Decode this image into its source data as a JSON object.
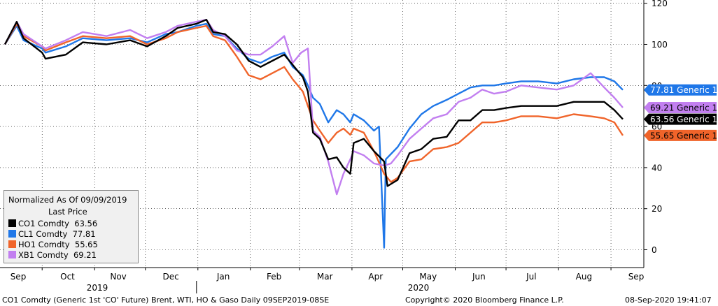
{
  "chart_data": {
    "type": "line",
    "normalization_label": "Normalized As Of 09/09/2019",
    "legend_subtitle": "Last Price",
    "x_ticks": [
      "Sep",
      "Oct",
      "Nov",
      "Dec",
      "Jan",
      "Feb",
      "Mar",
      "Apr",
      "May",
      "Jun",
      "Jul",
      "Aug",
      "Sep"
    ],
    "year_labels": [
      "2019",
      "2020"
    ],
    "y_ticks": [
      "0",
      "20",
      "40",
      "60",
      "80",
      "100",
      "120"
    ],
    "ylim": [
      -10,
      120
    ],
    "grid": true,
    "legend_position": "bottom-left",
    "series": [
      {
        "name": "CO1 Comdty",
        "last": "63.56",
        "color": "#000000",
        "tag": "63.56 Generic 1",
        "tag_text_color": "#ffffff",
        "points": [
          [
            "2019-09-09",
            100
          ],
          [
            "2019-09-16",
            111
          ],
          [
            "2019-09-20",
            103
          ],
          [
            "2019-10-01",
            96
          ],
          [
            "2019-10-03",
            93
          ],
          [
            "2019-10-15",
            95
          ],
          [
            "2019-10-25",
            101
          ],
          [
            "2019-11-08",
            100
          ],
          [
            "2019-11-22",
            102
          ],
          [
            "2019-12-02",
            99
          ],
          [
            "2019-12-13",
            104
          ],
          [
            "2019-12-20",
            108
          ],
          [
            "2019-12-31",
            110
          ],
          [
            "2020-01-06",
            112
          ],
          [
            "2020-01-10",
            106
          ],
          [
            "2020-01-17",
            105
          ],
          [
            "2020-01-24",
            100
          ],
          [
            "2020-01-31",
            92
          ],
          [
            "2020-02-07",
            89
          ],
          [
            "2020-02-14",
            92
          ],
          [
            "2020-02-21",
            95
          ],
          [
            "2020-02-26",
            90
          ],
          [
            "2020-03-03",
            84
          ],
          [
            "2020-03-06",
            77
          ],
          [
            "2020-03-09",
            57
          ],
          [
            "2020-03-13",
            54
          ],
          [
            "2020-03-18,",
            44
          ],
          [
            "2020-03-23",
            45
          ],
          [
            "2020-03-27",
            40
          ],
          [
            "2020-03-31",
            37
          ],
          [
            "2020-04-02",
            52
          ],
          [
            "2020-04-08",
            54
          ],
          [
            "2020-04-14",
            48
          ],
          [
            "2020-04-20",
            43
          ],
          [
            "2020-04-22",
            31
          ],
          [
            "2020-04-28",
            34
          ],
          [
            "2020-05-05",
            47
          ],
          [
            "2020-05-12",
            49
          ],
          [
            "2020-05-19",
            54
          ],
          [
            "2020-05-27",
            55
          ],
          [
            "2020-06-03",
            63
          ],
          [
            "2020-06-10",
            63
          ],
          [
            "2020-06-17",
            68
          ],
          [
            "2020-06-24",
            68
          ],
          [
            "2020-07-01",
            69
          ],
          [
            "2020-07-10",
            70
          ],
          [
            "2020-07-20",
            70
          ],
          [
            "2020-07-31",
            70
          ],
          [
            "2020-08-10",
            72
          ],
          [
            "2020-08-20",
            72
          ],
          [
            "2020-08-28",
            72
          ],
          [
            "2020-09-03",
            68
          ],
          [
            "2020-09-08",
            63.56
          ]
        ]
      },
      {
        "name": "CL1 Comdty",
        "last": "77.81",
        "color": "#1f77e8",
        "tag": "77.81 Generic 1",
        "tag_text_color": "#ffffff",
        "points": [
          [
            "2019-09-09",
            100
          ],
          [
            "2019-09-16",
            109
          ],
          [
            "2019-09-20",
            102
          ],
          [
            "2019-10-01",
            98
          ],
          [
            "2019-10-03",
            96
          ],
          [
            "2019-10-15",
            99
          ],
          [
            "2019-10-25",
            103
          ],
          [
            "2019-11-08",
            102
          ],
          [
            "2019-11-22",
            103
          ],
          [
            "2019-12-02",
            101
          ],
          [
            "2019-12-13",
            105
          ],
          [
            "2019-12-20",
            106
          ],
          [
            "2019-12-31",
            109
          ],
          [
            "2020-01-06",
            110
          ],
          [
            "2020-01-10",
            105
          ],
          [
            "2020-01-17",
            104
          ],
          [
            "2020-01-24",
            98
          ],
          [
            "2020-01-31",
            93
          ],
          [
            "2020-02-07",
            91
          ],
          [
            "2020-02-14",
            94
          ],
          [
            "2020-02-21",
            96
          ],
          [
            "2020-02-26",
            89
          ],
          [
            "2020-03-03",
            85
          ],
          [
            "2020-03-06",
            80
          ],
          [
            "2020-03-09",
            74
          ],
          [
            "2020-03-13",
            71
          ],
          [
            "2020-03-18",
            62
          ],
          [
            "2020-03-23",
            68
          ],
          [
            "2020-03-27",
            66
          ],
          [
            "2020-03-31",
            62
          ],
          [
            "2020-04-02",
            66
          ],
          [
            "2020-04-08",
            63
          ],
          [
            "2020-04-14",
            58
          ],
          [
            "2020-04-17",
            60
          ],
          [
            "2020-04-20",
            1
          ],
          [
            "2020-04-21",
            44
          ],
          [
            "2020-04-28",
            50
          ],
          [
            "2020-05-05",
            59
          ],
          [
            "2020-05-12",
            66
          ],
          [
            "2020-05-19",
            70
          ],
          [
            "2020-05-27",
            73
          ],
          [
            "2020-06-03",
            76
          ],
          [
            "2020-06-10",
            79
          ],
          [
            "2020-06-17",
            80
          ],
          [
            "2020-06-24",
            80
          ],
          [
            "2020-07-01",
            81
          ],
          [
            "2020-07-10",
            82
          ],
          [
            "2020-07-20",
            82
          ],
          [
            "2020-07-31",
            81
          ],
          [
            "2020-08-10",
            83
          ],
          [
            "2020-08-20",
            84
          ],
          [
            "2020-08-28",
            84
          ],
          [
            "2020-09-03",
            82
          ],
          [
            "2020-09-08",
            77.81
          ]
        ]
      },
      {
        "name": "HO1 Comdty",
        "last": "55.65",
        "color": "#f0642a",
        "tag": "55.65 Generic 1",
        "tag_text_color": "#000000",
        "points": [
          [
            "2019-09-09",
            100
          ],
          [
            "2019-09-16",
            110
          ],
          [
            "2019-09-20",
            104
          ],
          [
            "2019-10-01",
            99
          ],
          [
            "2019-10-03",
            97
          ],
          [
            "2019-10-15",
            101
          ],
          [
            "2019-10-25",
            104
          ],
          [
            "2019-11-08",
            103
          ],
          [
            "2019-11-22",
            104
          ],
          [
            "2019-12-02",
            100
          ],
          [
            "2019-12-13",
            103
          ],
          [
            "2019-12-20",
            106
          ],
          [
            "2019-12-31",
            108
          ],
          [
            "2020-01-06",
            109
          ],
          [
            "2020-01-10",
            104
          ],
          [
            "2020-01-17",
            102
          ],
          [
            "2020-01-24",
            94
          ],
          [
            "2020-01-31",
            85
          ],
          [
            "2020-02-07",
            83
          ],
          [
            "2020-02-14",
            86
          ],
          [
            "2020-02-21",
            89
          ],
          [
            "2020-02-26",
            83
          ],
          [
            "2020-03-03",
            77
          ],
          [
            "2020-03-06",
            70
          ],
          [
            "2020-03-09",
            63
          ],
          [
            "2020-03-13",
            58
          ],
          [
            "2020-03-18",
            52
          ],
          [
            "2020-03-23",
            57
          ],
          [
            "2020-03-27",
            59
          ],
          [
            "2020-03-31",
            56
          ],
          [
            "2020-04-02",
            59
          ],
          [
            "2020-04-08",
            57
          ],
          [
            "2020-04-14",
            48
          ],
          [
            "2020-04-20",
            37
          ],
          [
            "2020-04-24",
            33
          ],
          [
            "2020-04-28",
            35
          ],
          [
            "2020-05-05",
            43
          ],
          [
            "2020-05-12",
            44
          ],
          [
            "2020-05-19",
            49
          ],
          [
            "2020-05-27",
            50
          ],
          [
            "2020-06-03",
            52
          ],
          [
            "2020-06-10",
            57
          ],
          [
            "2020-06-17",
            62
          ],
          [
            "2020-06-24",
            62
          ],
          [
            "2020-07-01",
            63
          ],
          [
            "2020-07-10",
            65
          ],
          [
            "2020-07-20",
            65
          ],
          [
            "2020-07-31",
            64
          ],
          [
            "2020-08-10",
            66
          ],
          [
            "2020-08-20",
            65
          ],
          [
            "2020-08-28",
            64
          ],
          [
            "2020-09-03",
            62
          ],
          [
            "2020-09-08",
            55.65
          ]
        ]
      },
      {
        "name": "XB1 Comdty",
        "last": "69.21",
        "color": "#c27ff0",
        "tag": "69.21 Generic 1",
        "tag_text_color": "#000000",
        "points": [
          [
            "2019-09-09",
            100
          ],
          [
            "2019-09-16",
            111
          ],
          [
            "2019-09-20",
            105
          ],
          [
            "2019-10-01",
            99
          ],
          [
            "2019-10-03",
            98
          ],
          [
            "2019-10-15",
            102
          ],
          [
            "2019-10-25",
            106
          ],
          [
            "2019-11-08",
            104
          ],
          [
            "2019-11-22",
            107
          ],
          [
            "2019-12-02",
            103
          ],
          [
            "2019-12-13",
            106
          ],
          [
            "2019-12-20",
            109
          ],
          [
            "2019-12-31",
            111
          ],
          [
            "2020-01-06",
            112
          ],
          [
            "2020-01-10",
            107
          ],
          [
            "2020-01-17",
            104
          ],
          [
            "2020-01-24",
            97
          ],
          [
            "2020-01-31",
            95
          ],
          [
            "2020-02-07",
            95
          ],
          [
            "2020-02-14",
            99
          ],
          [
            "2020-02-21",
            104
          ],
          [
            "2020-02-24",
            96
          ],
          [
            "2020-02-26",
            91
          ],
          [
            "2020-03-02",
            96
          ],
          [
            "2020-03-06",
            98
          ],
          [
            "2020-03-09",
            58
          ],
          [
            "2020-03-13",
            55
          ],
          [
            "2020-03-18",
            43
          ],
          [
            "2020-03-23",
            27
          ],
          [
            "2020-03-27",
            37
          ],
          [
            "2020-03-31",
            44
          ],
          [
            "2020-04-02",
            48
          ],
          [
            "2020-04-08",
            46
          ],
          [
            "2020-04-14",
            42
          ],
          [
            "2020-04-20",
            41
          ],
          [
            "2020-04-24",
            42
          ],
          [
            "2020-04-28",
            46
          ],
          [
            "2020-05-05",
            54
          ],
          [
            "2020-05-12",
            59
          ],
          [
            "2020-05-19",
            64
          ],
          [
            "2020-05-27",
            66
          ],
          [
            "2020-06-03",
            72
          ],
          [
            "2020-06-10",
            74
          ],
          [
            "2020-06-17",
            78
          ],
          [
            "2020-06-24",
            76
          ],
          [
            "2020-07-01",
            77
          ],
          [
            "2020-07-10",
            80
          ],
          [
            "2020-07-20",
            79
          ],
          [
            "2020-07-31",
            78
          ],
          [
            "2020-08-10",
            80
          ],
          [
            "2020-08-20",
            86
          ],
          [
            "2020-08-28",
            79
          ],
          [
            "2020-09-03",
            74
          ],
          [
            "2020-09-08",
            69.21
          ]
        ]
      }
    ]
  },
  "footer": {
    "description": "CO1 Comdty (Generic 1st 'CO' Future) Brent, WTI, HO & Gaso  Daily 09SEP2019-08SE",
    "copyright": "Copyright© 2020 Bloomberg Finance L.P.",
    "timestamp": "08-Sep-2020 19:41:07"
  }
}
